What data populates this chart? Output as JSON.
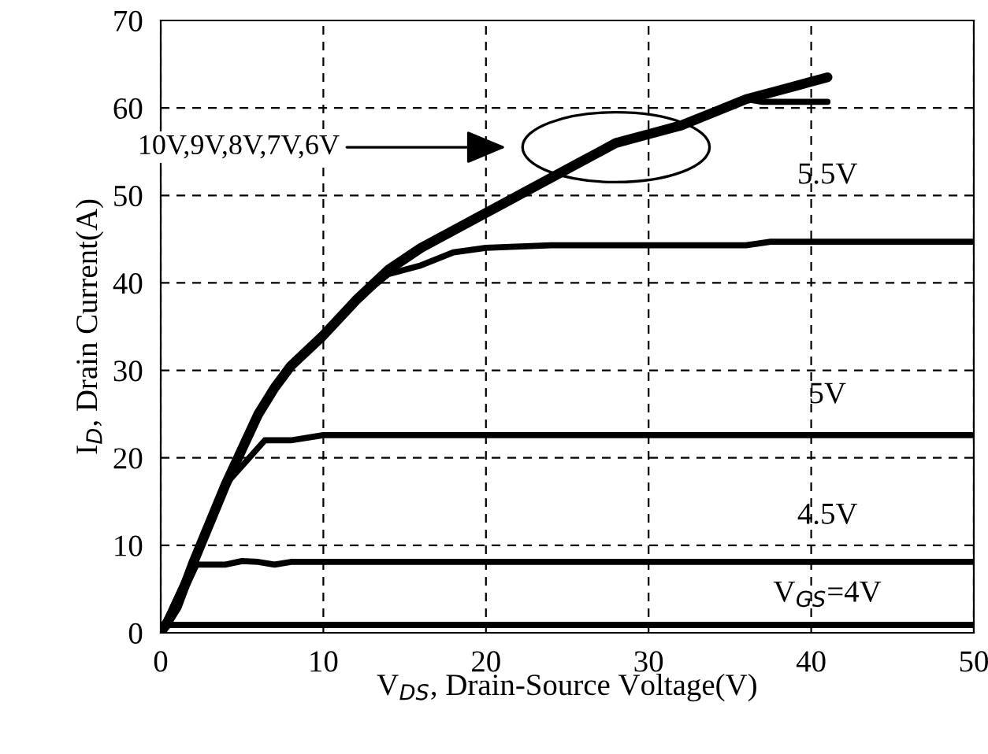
{
  "chart_data": {
    "type": "line",
    "xlabel": "V$_{DS}$, Drain-Source Voltage(V)",
    "ylabel": "I$_{D}$, Drain Current(A)",
    "xlim": [
      0,
      50
    ],
    "xticks": [
      0,
      10,
      20,
      30,
      40,
      50
    ],
    "ylim": [
      0,
      70
    ],
    "yticks": [
      0,
      10,
      20,
      30,
      40,
      50,
      60,
      70
    ],
    "grid": true,
    "line_style": "solid",
    "legend": false,
    "annotations": [
      "10V,9V,8V,7V,6V"
    ],
    "series": [
      {
        "color": "#000000",
        "x": [
          0,
          1,
          2,
          3,
          4,
          5,
          6,
          7,
          8,
          10,
          12,
          14,
          16,
          18,
          20,
          22,
          24,
          26,
          28,
          30,
          32,
          34,
          36,
          38,
          40,
          41
        ],
        "values": [
          0,
          3,
          8,
          12.5,
          17,
          21,
          25,
          28,
          30.5,
          34,
          38,
          41.5,
          44,
          46,
          48,
          50,
          52,
          54,
          56,
          57,
          58,
          59.5,
          61,
          62,
          63,
          63.5
        ]
      },
      {
        "color": "#000000",
        "x": [
          36,
          37,
          41
        ],
        "values": [
          61,
          60.7,
          60.7
        ]
      },
      {
        "name": "5.5V",
        "color": "#000000",
        "x": [
          0,
          2,
          4,
          6,
          8,
          10,
          12,
          14,
          16,
          18,
          20,
          24,
          36,
          37.5,
          50
        ],
        "values": [
          0,
          8,
          17,
          25,
          30.5,
          34,
          38,
          41,
          42,
          43.5,
          44,
          44.3,
          44.3,
          44.7,
          44.7
        ]
      },
      {
        "name": "5V",
        "color": "#000000",
        "x": [
          0,
          2,
          4,
          6.4,
          8,
          10,
          50
        ],
        "values": [
          0,
          8,
          17,
          22,
          22,
          22.6,
          22.6
        ]
      },
      {
        "name": "V$_{GS}$=4V",
        "color": "#000000",
        "x": [
          0,
          0.5,
          50
        ],
        "values": [
          0,
          0.9,
          0.9
        ]
      },
      {
        "name": "4.5V",
        "color": "#000000",
        "x": [
          0,
          1,
          2.2,
          4,
          5,
          6,
          7,
          8,
          50
        ],
        "values": [
          0,
          3,
          7.8,
          7.8,
          8.2,
          8.1,
          7.8,
          8.1,
          8.1
        ]
      }
    ]
  }
}
